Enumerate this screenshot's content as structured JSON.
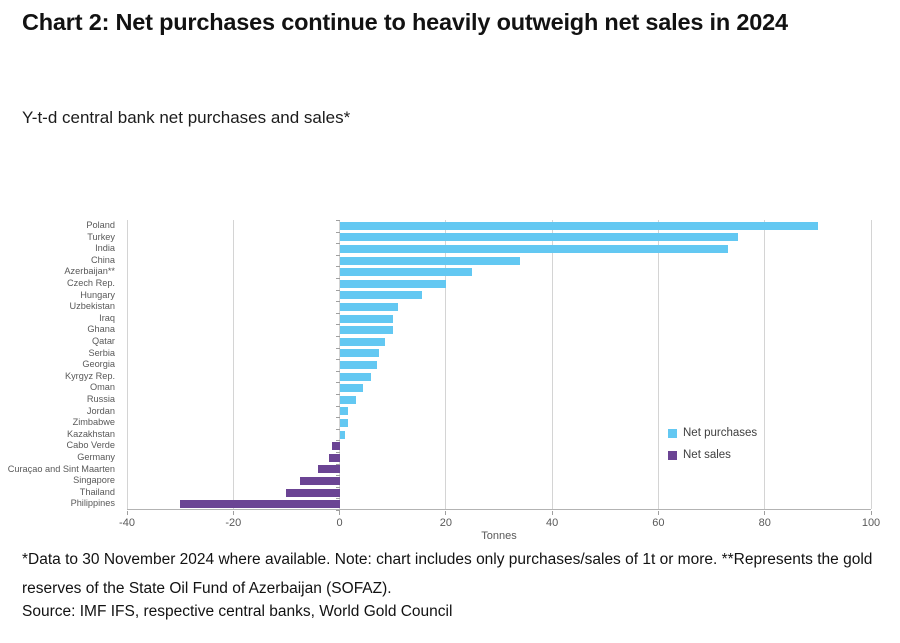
{
  "header": {
    "title": "Chart 2: Net purchases continue to heavily outweigh net sales in 2024",
    "subtitle": "Y-t-d central bank net purchases and sales*"
  },
  "chart_data": {
    "type": "bar",
    "orientation": "horizontal",
    "title": "Y-t-d central bank net purchases and sales*",
    "xlabel": "Tonnes",
    "ylabel": "",
    "xlim": [
      -40,
      100
    ],
    "xticks": [
      -40,
      -20,
      0,
      20,
      40,
      60,
      80,
      100
    ],
    "grid": true,
    "legend_position": "center-right",
    "categories": [
      "Poland",
      "Turkey",
      "India",
      "China",
      "Azerbaijan**",
      "Czech Rep.",
      "Hungary",
      "Uzbekistan",
      "Iraq",
      "Ghana",
      "Qatar",
      "Serbia",
      "Georgia",
      "Kyrgyz Rep.",
      "Oman",
      "Russia",
      "Jordan",
      "Zimbabwe",
      "Kazakhstan",
      "Cabo Verde",
      "Germany",
      "Curaçao and Sint Maarten",
      "Singapore",
      "Thailand",
      "Philippines"
    ],
    "values": [
      90,
      75,
      73,
      34,
      25,
      20,
      15.5,
      11,
      10,
      10,
      8.5,
      7.5,
      7,
      6,
      4.5,
      3,
      1.5,
      1.5,
      1,
      -1.5,
      -2,
      -4,
      -7.5,
      -10,
      -30
    ],
    "series": [
      {
        "name": "Net purchases",
        "color": "#63C8F2",
        "applies_to": "positive values"
      },
      {
        "name": "Net sales",
        "color": "#6B4494",
        "applies_to": "negative values"
      }
    ],
    "bar_unit": "tonnes"
  },
  "footer": {
    "note": "*Data to 30 November 2024 where available. Note: chart includes only purchases/sales of 1t or more. **Represents the gold reserves of the State Oil Fund of Azerbaijan (SOFAZ).",
    "source": "Source: IMF IFS, respective central banks, World Gold Council"
  }
}
